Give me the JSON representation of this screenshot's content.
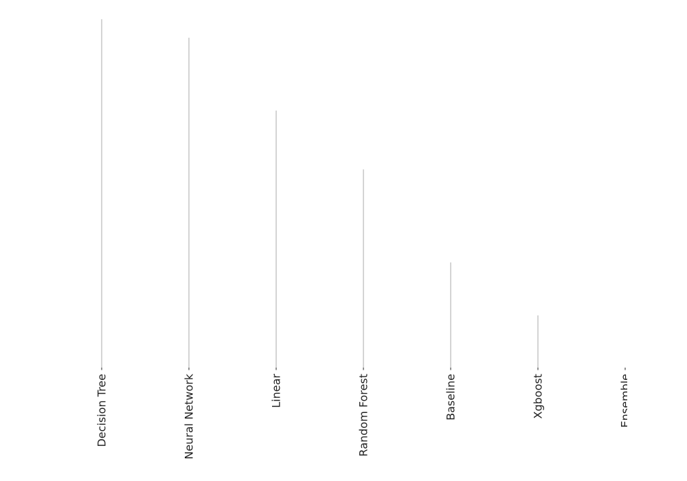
{
  "chart_data": {
    "type": "bar",
    "style": "lollipop-stems",
    "categories": [
      "Decision Tree",
      "Neural Network",
      "Linear",
      "Random Forest",
      "Baseline",
      "Xgboost",
      "Ensemble"
    ],
    "values": [
      1.0,
      0.947,
      0.738,
      0.569,
      0.302,
      0.15,
      0.0
    ],
    "title": "",
    "xlabel": "",
    "ylabel": "",
    "ylim": [
      0,
      1.0
    ],
    "grid": false,
    "yaxis_visible": false,
    "stem_color": "#aaaaaa"
  }
}
